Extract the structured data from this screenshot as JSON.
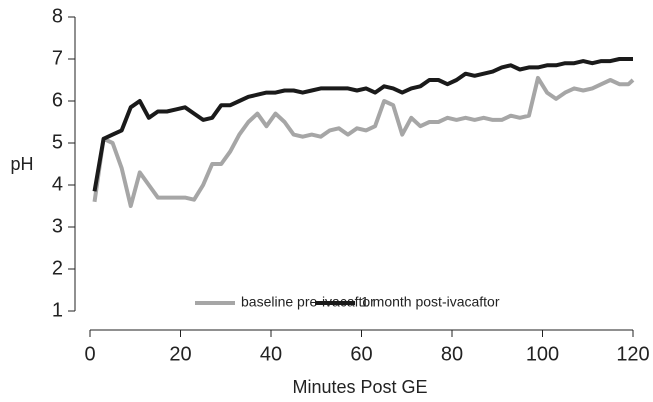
{
  "chart_data": {
    "type": "line",
    "xlabel": "Minutes Post GE",
    "ylabel": "pH",
    "x": [
      1,
      3,
      5,
      7,
      9,
      11,
      13,
      15,
      17,
      19,
      21,
      23,
      25,
      27,
      29,
      31,
      33,
      35,
      37,
      39,
      41,
      43,
      45,
      47,
      49,
      51,
      53,
      55,
      57,
      59,
      61,
      63,
      65,
      67,
      69,
      71,
      73,
      75,
      77,
      79,
      81,
      83,
      85,
      87,
      89,
      91,
      93,
      95,
      97,
      99,
      101,
      103,
      105,
      107,
      109,
      111,
      113,
      115,
      117,
      119,
      120
    ],
    "series": [
      {
        "name": "baseline pre-ivacaftor",
        "color": "#a6a6a6",
        "values": [
          3.6,
          5.1,
          5.0,
          4.4,
          3.5,
          4.3,
          4.0,
          3.7,
          3.7,
          3.7,
          3.7,
          3.65,
          4.0,
          4.5,
          4.5,
          4.8,
          5.2,
          5.5,
          5.7,
          5.4,
          5.7,
          5.5,
          5.2,
          5.15,
          5.2,
          5.15,
          5.3,
          5.35,
          5.2,
          5.35,
          5.3,
          5.4,
          6.0,
          5.9,
          5.2,
          5.6,
          5.4,
          5.5,
          5.5,
          5.6,
          5.55,
          5.6,
          5.55,
          5.6,
          5.55,
          5.55,
          5.65,
          5.6,
          5.65,
          6.55,
          6.2,
          6.05,
          6.2,
          6.3,
          6.25,
          6.3,
          6.4,
          6.5,
          6.4,
          6.4,
          6.5
        ]
      },
      {
        "name": "1 month post-ivacaftor",
        "color": "#1a1a1a",
        "values": [
          3.85,
          5.1,
          5.2,
          5.3,
          5.85,
          6.0,
          5.6,
          5.75,
          5.75,
          5.8,
          5.85,
          5.7,
          5.55,
          5.6,
          5.9,
          5.9,
          6.0,
          6.1,
          6.15,
          6.2,
          6.2,
          6.25,
          6.25,
          6.2,
          6.25,
          6.3,
          6.3,
          6.3,
          6.3,
          6.25,
          6.3,
          6.2,
          6.35,
          6.3,
          6.2,
          6.3,
          6.35,
          6.5,
          6.5,
          6.4,
          6.5,
          6.65,
          6.6,
          6.65,
          6.7,
          6.8,
          6.85,
          6.75,
          6.8,
          6.8,
          6.85,
          6.85,
          6.9,
          6.9,
          6.95,
          6.9,
          6.95,
          6.95,
          7.0,
          7.0,
          7.0
        ]
      }
    ],
    "xlim": [
      0,
      120
    ],
    "xticks": [
      0,
      20,
      40,
      60,
      80,
      100,
      120
    ],
    "ylim": [
      1,
      8
    ],
    "yticks": [
      1,
      2,
      3,
      4,
      5,
      6,
      7,
      8
    ],
    "legend": "lower right"
  }
}
